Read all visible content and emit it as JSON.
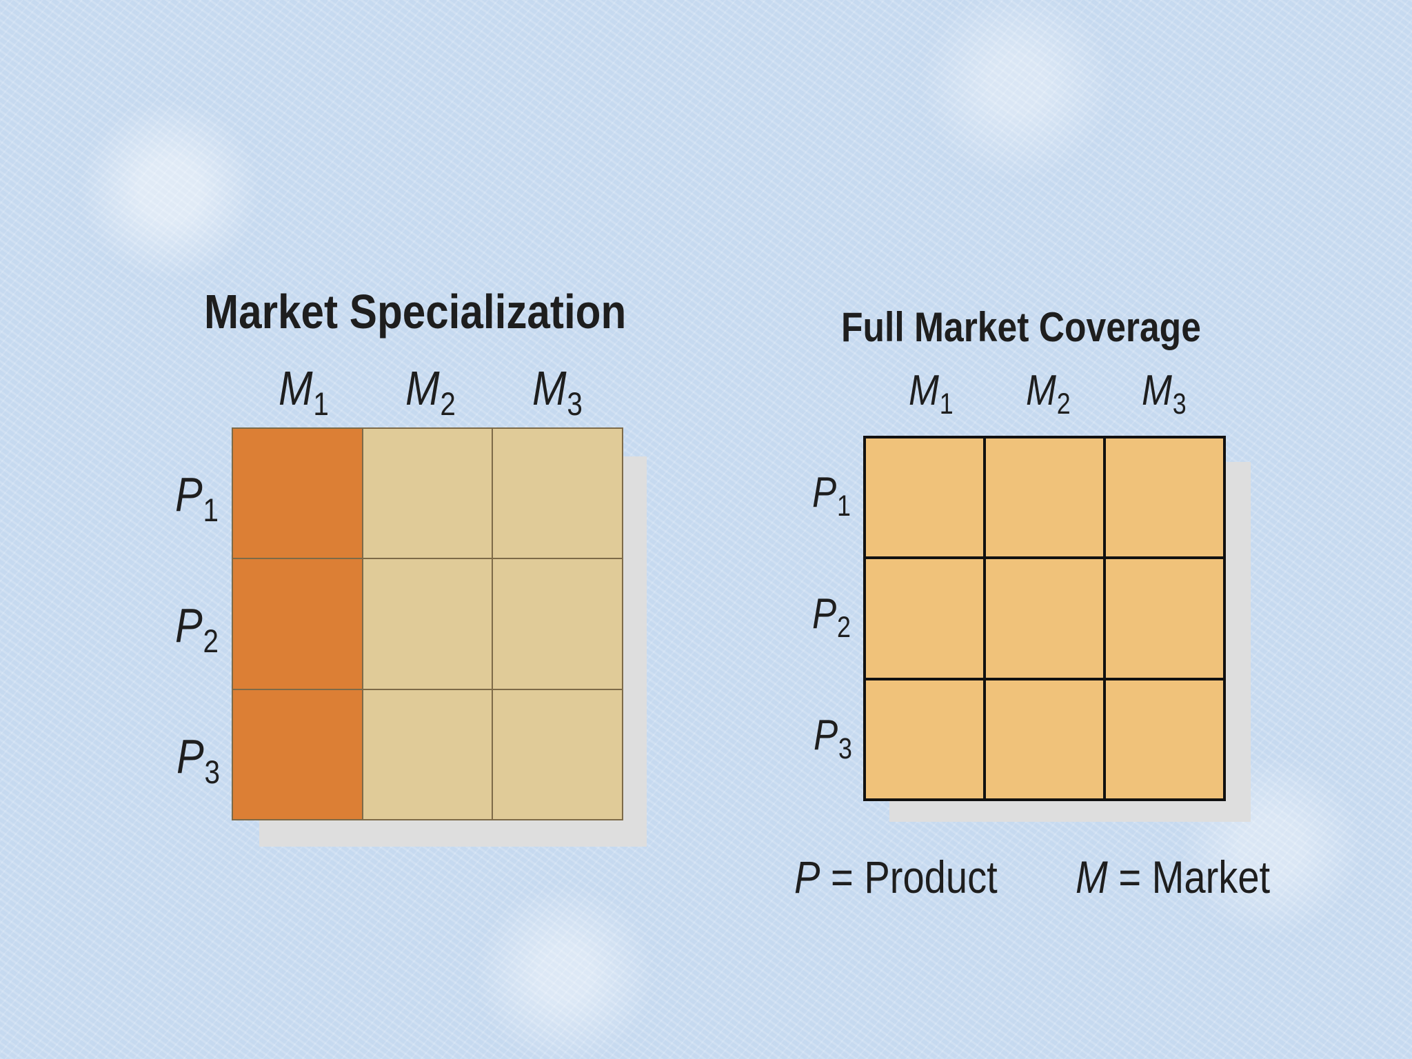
{
  "diagrams": [
    {
      "title": "Market Specialization",
      "markets": [
        {
          "letter": "M",
          "sub": "1"
        },
        {
          "letter": "M",
          "sub": "2"
        },
        {
          "letter": "M",
          "sub": "3"
        }
      ],
      "products": [
        {
          "letter": "P",
          "sub": "1"
        },
        {
          "letter": "P",
          "sub": "2"
        },
        {
          "letter": "P",
          "sub": "3"
        }
      ],
      "cells": [
        [
          "#dc7f35",
          "#e0cb98",
          "#e0cb98"
        ],
        [
          "#dc7f35",
          "#e0cb98",
          "#e0cb98"
        ],
        [
          "#dc7f35",
          "#e0cb98",
          "#e0cb98"
        ]
      ]
    },
    {
      "title": "Full Market Coverage",
      "markets": [
        {
          "letter": "M",
          "sub": "1"
        },
        {
          "letter": "M",
          "sub": "2"
        },
        {
          "letter": "M",
          "sub": "3"
        }
      ],
      "products": [
        {
          "letter": "P",
          "sub": "1"
        },
        {
          "letter": "P",
          "sub": "2"
        },
        {
          "letter": "P",
          "sub": "3"
        }
      ],
      "cells": [
        [
          "#f0c27a",
          "#f0c27a",
          "#f0c27a"
        ],
        [
          "#f0c27a",
          "#f0c27a",
          "#f0c27a"
        ],
        [
          "#f0c27a",
          "#f0c27a",
          "#f0c27a"
        ]
      ]
    }
  ],
  "legend": {
    "product": {
      "var": "P",
      "eq": " = ",
      "text": "Product"
    },
    "market": {
      "var": "M",
      "eq": " = ",
      "text": "Market"
    }
  },
  "colors": {
    "background": "#cfe0f3",
    "selected_segment": "#dc7f35",
    "unselected_segment": "#e0cb98",
    "covered_segment": "#f0c27a"
  }
}
